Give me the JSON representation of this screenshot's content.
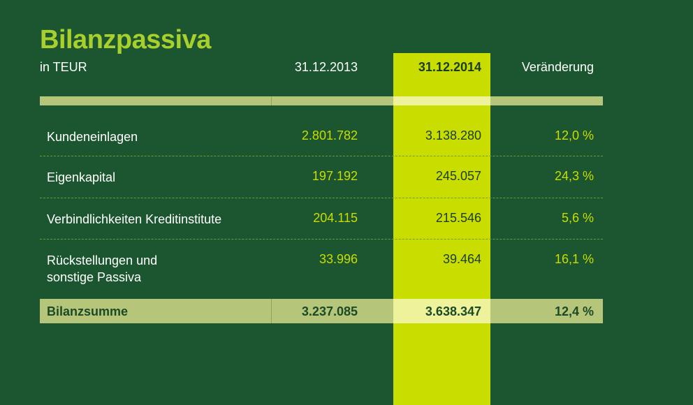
{
  "title": "Bilanzpassiva",
  "unit": "in TEUR",
  "columns": [
    "31.12.2013",
    "31.12.2014",
    "Veränderung"
  ],
  "rows": [
    {
      "label": "Kundeneinlagen",
      "v2013": "2.801.782",
      "v2014": "3.138.280",
      "change": "12,0 %"
    },
    {
      "label": "Eigenkapital",
      "v2013": "197.192",
      "v2014": "245.057",
      "change": "24,3 %"
    },
    {
      "label": "Verbindlichkeiten Kreditinstitute",
      "v2013": "204.115",
      "v2014": "215.546",
      "change": "5,6 %"
    },
    {
      "label": "Rückstellungen und",
      "label2": "sonstige Passiva",
      "v2013": "33.996",
      "v2014": "39.464",
      "change": "16,1 %"
    }
  ],
  "total": {
    "label": "Bilanzsumme",
    "v2013": "3.237.085",
    "v2014": "3.638.347",
    "change": "12,4 %"
  },
  "colors": {
    "background": "#1c5630",
    "highlight": "#c9dd00",
    "title": "#a9cf2d",
    "band": "#b5c57a"
  }
}
